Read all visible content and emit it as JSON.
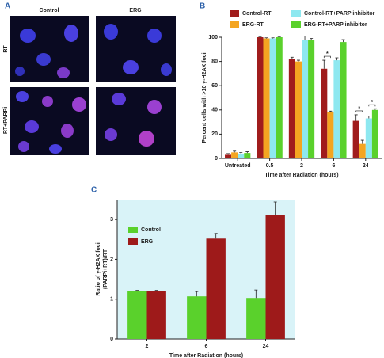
{
  "panel_a": {
    "panel_label": "A",
    "columns": [
      "Control",
      "ERG"
    ],
    "rows": [
      "RT",
      "RT+PARPi"
    ]
  },
  "chart_data": [
    {
      "type": "bar",
      "panel_label": "B",
      "categories": [
        "Untreated",
        "0.5",
        "2",
        "6",
        "24"
      ],
      "series": [
        {
          "name": "Control-RT",
          "color": "#a01c1c",
          "values": [
            3,
            100,
            82,
            74,
            31
          ],
          "errors": [
            1,
            0.5,
            1.5,
            7,
            5
          ]
        },
        {
          "name": "ERG-RT",
          "color": "#f4a521",
          "values": [
            5,
            99,
            80,
            38,
            12
          ],
          "errors": [
            1,
            0.5,
            1,
            1,
            3
          ]
        },
        {
          "name": "Control-RT+PARP inhibitor",
          "color": "#8ee8f0",
          "values": [
            4,
            99,
            98,
            81,
            33
          ],
          "errors": [
            1,
            0.5,
            3,
            2,
            2
          ]
        },
        {
          "name": "ERG-RT+PARP inhibitor",
          "color": "#5ad12c",
          "values": [
            4.5,
            100,
            98,
            96,
            40
          ],
          "errors": [
            1,
            0.5,
            1,
            2,
            1
          ]
        }
      ],
      "ylim": [
        0,
        100
      ],
      "yticks": [
        0,
        20,
        40,
        60,
        80,
        100
      ],
      "ylabel": [
        "Percent cells with >10 γ-H2AX foci"
      ],
      "xlabel": "Time after Radiation (hours)",
      "annotations": [
        "*",
        "*",
        "*"
      ],
      "legend": "top",
      "background": "#ffffff"
    },
    {
      "type": "bar",
      "panel_label": "C",
      "categories": [
        "2",
        "6",
        "24"
      ],
      "series": [
        {
          "name": "Control",
          "color": "#5ad12c",
          "values": [
            1.2,
            1.07,
            1.03
          ],
          "errors": [
            0.02,
            0.12,
            0.2
          ]
        },
        {
          "name": "ERG",
          "color": "#9e1a1a",
          "values": [
            1.21,
            2.52,
            3.12
          ],
          "errors": [
            0.01,
            0.13,
            0.32
          ]
        }
      ],
      "ylim": [
        0,
        3.5
      ],
      "yticks": [
        0,
        1,
        2,
        3
      ],
      "ylabel": [
        "Ratio of γ-H2AX foci",
        "(PARPi+RT)/RT"
      ],
      "xlabel": "Time after Radiation (hours)",
      "legend": "upper left",
      "background": "#d9f3f8"
    }
  ]
}
